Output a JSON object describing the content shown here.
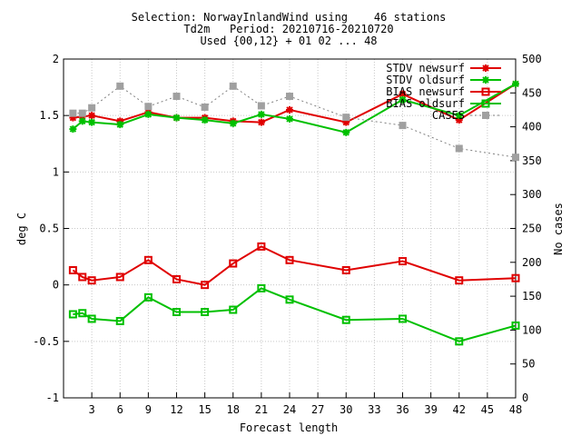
{
  "chart_data": {
    "type": "line",
    "title": [
      "Selection: NorwayInlandWind using    46 stations",
      "Td2m   Period: 20210716-20210720",
      "Used {00,12} + 01 02 ... 48"
    ],
    "xlabel": "Forecast length",
    "ylabel": "deg C",
    "y2label": "No cases",
    "xlim": [
      0,
      48
    ],
    "ylim": [
      -1,
      2
    ],
    "y2lim": [
      0,
      500
    ],
    "xticks": [
      3,
      6,
      9,
      12,
      15,
      18,
      21,
      24,
      27,
      30,
      33,
      36,
      39,
      42,
      45,
      48
    ],
    "yticks": [
      -1,
      -0.5,
      0,
      0.5,
      1,
      1.5,
      2
    ],
    "y2ticks": [
      0,
      50,
      100,
      150,
      200,
      250,
      300,
      350,
      400,
      450,
      500
    ],
    "grid": true,
    "legend_position": "top-right",
    "series": [
      {
        "name": "STDV newsurf",
        "axis": "left",
        "color": "#e00000",
        "marker": "star",
        "x": [
          1,
          2,
          3,
          6,
          9,
          12,
          15,
          18,
          21,
          24,
          30,
          36,
          42,
          48
        ],
        "y": [
          1.48,
          1.49,
          1.5,
          1.45,
          1.53,
          1.48,
          1.48,
          1.45,
          1.44,
          1.55,
          1.44,
          1.69,
          1.46,
          1.78
        ]
      },
      {
        "name": "STDV oldsurf",
        "axis": "left",
        "color": "#00c000",
        "marker": "star",
        "x": [
          1,
          2,
          3,
          6,
          9,
          12,
          15,
          18,
          21,
          24,
          30,
          36,
          42,
          48
        ],
        "y": [
          1.38,
          1.45,
          1.44,
          1.42,
          1.51,
          1.48,
          1.46,
          1.43,
          1.51,
          1.47,
          1.35,
          1.64,
          1.5,
          1.78
        ]
      },
      {
        "name": "BIAS newsurf",
        "axis": "left",
        "color": "#e00000",
        "marker": "square",
        "x": [
          1,
          2,
          3,
          6,
          9,
          12,
          15,
          18,
          21,
          24,
          30,
          36,
          42,
          48
        ],
        "y": [
          0.13,
          0.07,
          0.04,
          0.07,
          0.22,
          0.05,
          0.0,
          0.19,
          0.34,
          0.22,
          0.13,
          0.21,
          0.04,
          0.06
        ]
      },
      {
        "name": "BIAS oldsurf",
        "axis": "left",
        "color": "#00c000",
        "marker": "square",
        "x": [
          1,
          2,
          3,
          6,
          9,
          12,
          15,
          18,
          21,
          24,
          30,
          36,
          42,
          48
        ],
        "y": [
          -0.26,
          -0.25,
          -0.3,
          -0.32,
          -0.11,
          -0.24,
          -0.24,
          -0.22,
          -0.03,
          -0.13,
          -0.31,
          -0.3,
          -0.5,
          -0.36
        ]
      },
      {
        "name": "CASES",
        "axis": "right",
        "color": "#a0a0a0",
        "marker": "filled-square",
        "x": [
          1,
          2,
          3,
          6,
          9,
          12,
          15,
          18,
          21,
          24,
          30,
          36,
          42,
          48
        ],
        "y": [
          420,
          420,
          428,
          460,
          430,
          445,
          429,
          460,
          431,
          445,
          414,
          402,
          368,
          355
        ]
      }
    ]
  }
}
